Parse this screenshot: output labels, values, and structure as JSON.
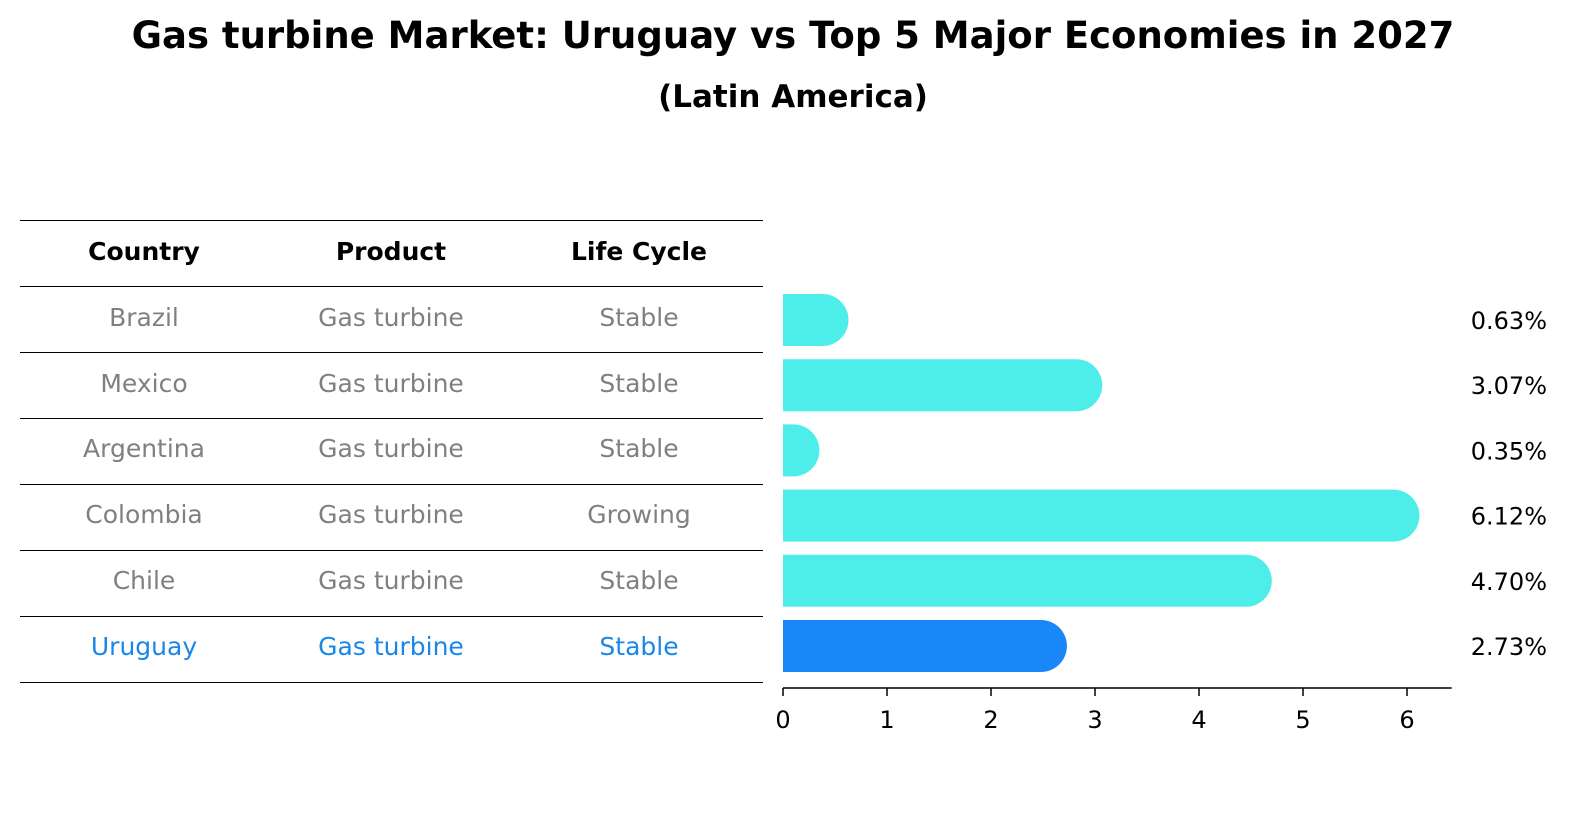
{
  "title": "Gas turbine Market: Uruguay vs Top 5 Major Economies in 2027",
  "subtitle": "(Latin America)",
  "table": {
    "headers": [
      "Country",
      "Product",
      "Life Cycle"
    ],
    "rows": [
      {
        "country": "Brazil",
        "product": "Gas turbine",
        "life_cycle": "Stable"
      },
      {
        "country": "Mexico",
        "product": "Gas turbine",
        "life_cycle": "Stable"
      },
      {
        "country": "Argentina",
        "product": "Gas turbine",
        "life_cycle": "Stable"
      },
      {
        "country": "Colombia",
        "product": "Gas turbine",
        "life_cycle": "Growing"
      },
      {
        "country": "Chile",
        "product": "Gas turbine",
        "life_cycle": "Stable"
      },
      {
        "country": "Uruguay",
        "product": "Gas turbine",
        "life_cycle": "Stable"
      }
    ]
  },
  "colors": {
    "bar": "#4deeea",
    "highlight_bar": "#1a87f8",
    "highlight_text": "#1a87e8",
    "muted_text": "#808080"
  },
  "chart_data": {
    "type": "bar",
    "orientation": "horizontal",
    "categories": [
      "Brazil",
      "Mexico",
      "Argentina",
      "Colombia",
      "Chile",
      "Uruguay"
    ],
    "values": [
      0.63,
      3.07,
      0.35,
      6.12,
      4.7,
      2.73
    ],
    "value_labels": [
      "0.63%",
      "3.07%",
      "0.35%",
      "6.12%",
      "4.70%",
      "2.73%"
    ],
    "highlight": "Uruguay",
    "xlim": [
      0,
      6.43
    ],
    "xticks": [
      0,
      1,
      2,
      3,
      4,
      5,
      6
    ]
  }
}
